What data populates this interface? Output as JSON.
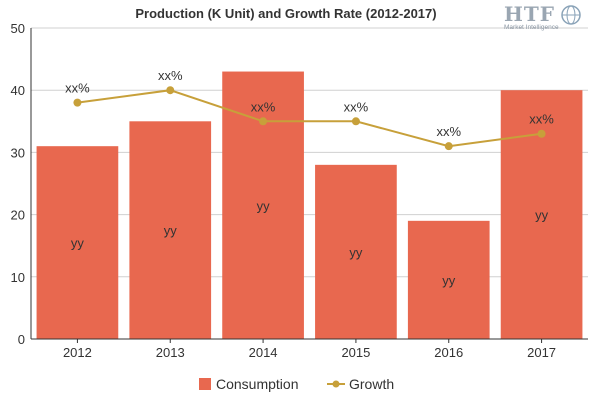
{
  "logo": {
    "mark": "HTF",
    "subtitle": "Market Intelligence",
    "icon": "globe-icon"
  },
  "colors": {
    "bar": "#E8684F",
    "line": "#C7A03A",
    "grid": "#d0d0d0",
    "axis": "#333333",
    "text": "#333333"
  },
  "chart_data": {
    "type": "bar",
    "title": "Production (K Unit) and Growth Rate (2012-2017)",
    "xlabel": "",
    "ylabel": "",
    "ylim": [
      0,
      50
    ],
    "yticks": [
      0,
      10,
      20,
      30,
      40,
      50
    ],
    "categories": [
      "2012",
      "2013",
      "2014",
      "2015",
      "2016",
      "2017"
    ],
    "series": [
      {
        "name": "Consumption",
        "type": "bar",
        "values": [
          31,
          35,
          43,
          28,
          19,
          40
        ],
        "labels": [
          "yy",
          "yy",
          "yy",
          "yy",
          "yy",
          "yy"
        ]
      },
      {
        "name": "Growth",
        "type": "line",
        "values": [
          38,
          40,
          35,
          35,
          31,
          33
        ],
        "labels": [
          "xx%",
          "xx%",
          "xx%",
          "xx%",
          "xx%",
          "xx%"
        ]
      }
    ],
    "grid": true,
    "legend": "bottom-center"
  }
}
